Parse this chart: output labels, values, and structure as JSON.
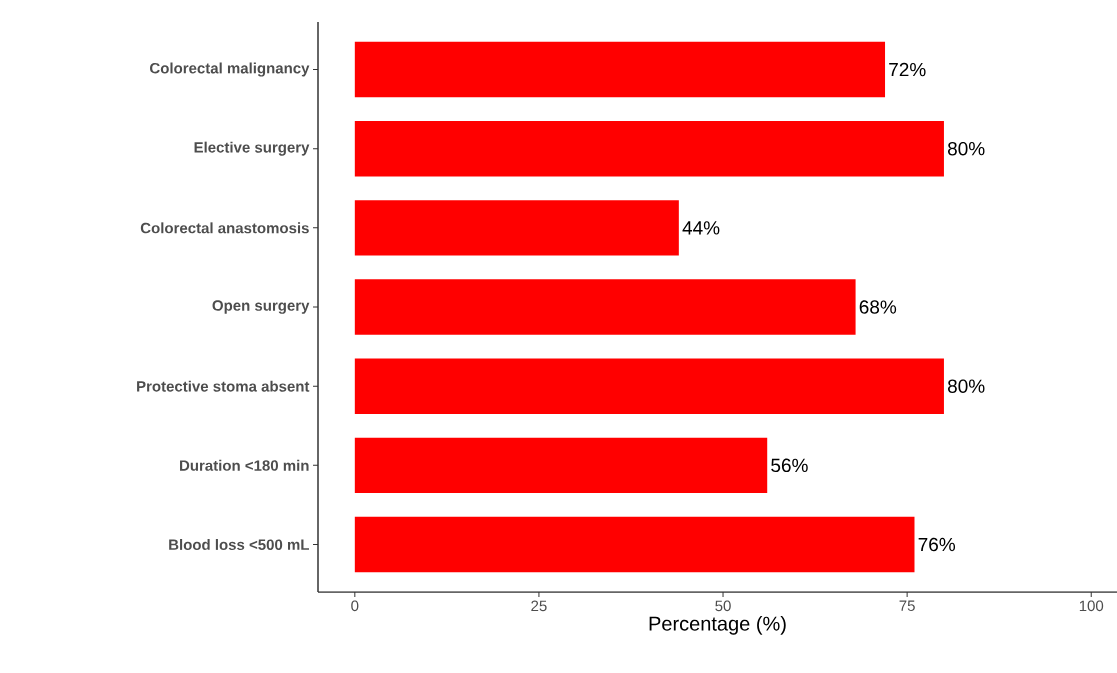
{
  "chart_data": {
    "type": "bar",
    "orientation": "horizontal",
    "categories": [
      "Colorectal malignancy",
      "Elective surgery",
      "Colorectal anastomosis",
      "Open surgery",
      "Protective stoma absent",
      "Duration <180 min",
      "Blood loss <500 mL"
    ],
    "values": [
      72,
      80,
      44,
      68,
      80,
      56,
      76
    ],
    "value_labels": [
      "72%",
      "80%",
      "44%",
      "68%",
      "80%",
      "56%",
      "76%"
    ],
    "color": "#ff0000",
    "xlabel": "Percentage (%)",
    "xlim": [
      -5,
      103.5
    ],
    "xticks": [
      0,
      25,
      50,
      75,
      100
    ]
  }
}
